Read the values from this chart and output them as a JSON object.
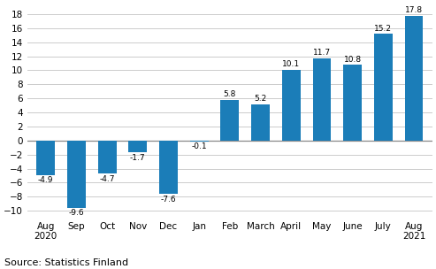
{
  "categories": [
    "Aug\n2020",
    "Sep",
    "Oct",
    "Nov",
    "Dec",
    "Jan",
    "Feb",
    "March",
    "April",
    "May",
    "June",
    "July",
    "Aug\n2021"
  ],
  "values": [
    -4.9,
    -9.6,
    -4.7,
    -1.7,
    -7.6,
    -0.1,
    5.8,
    5.2,
    10.1,
    11.7,
    10.8,
    15.2,
    17.8
  ],
  "bar_color": "#1b7db8",
  "ylim": [
    -11,
    19.5
  ],
  "yticks": [
    -10,
    -8,
    -6,
    -4,
    -2,
    0,
    2,
    4,
    6,
    8,
    10,
    12,
    14,
    16,
    18
  ],
  "source_text": "Source: Statistics Finland",
  "label_fontsize": 6.5,
  "tick_fontsize": 7.5,
  "source_fontsize": 8,
  "background_color": "#ffffff",
  "grid_color": "#cccccc",
  "bar_width": 0.6
}
